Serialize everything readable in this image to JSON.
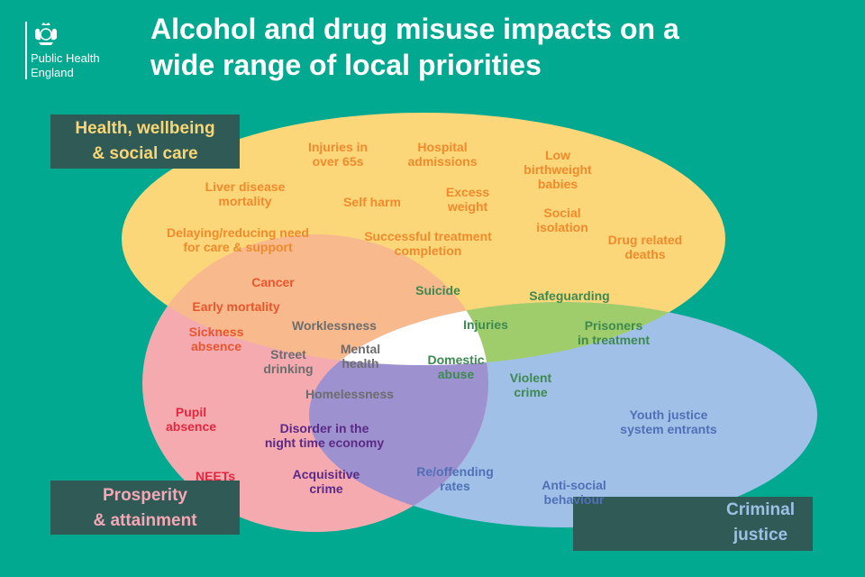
{
  "logo": {
    "name": "Public Health\nEngland",
    "icon": "royal-coat-of-arms-icon"
  },
  "title": {
    "line1": "Alcohol and drug misuse impacts on a",
    "line2": "wide range of local priorities"
  },
  "colors": {
    "background": "#00a98f",
    "health_fill": "#fbd77a",
    "criminal_fill": "#a0c0e7",
    "prosperity_fill": "#f5aab0",
    "health_criminal_overlap": "#9fcd6b",
    "health_prosperity_overlap": "#f8b98c",
    "criminal_prosperity_overlap": "#9d91cf",
    "centre_overlap": "#ffffff",
    "corner_labels": "#2f5a55"
  },
  "groups": {
    "health": {
      "line1": "Health, wellbeing",
      "line2": "& social care"
    },
    "prosperity": {
      "line1": "Prosperity",
      "line2": "& attainment"
    },
    "criminal": {
      "line1": "Criminal",
      "line2": "justice"
    }
  },
  "items": {
    "injuries_65": [
      "Injuries in",
      "over 65s"
    ],
    "hospital": [
      "Hospital",
      "admissions"
    ],
    "low_birthweight": [
      "Low",
      "birthweight",
      "babies"
    ],
    "liver": [
      "Liver disease",
      "mortality"
    ],
    "self_harm": [
      "Self harm"
    ],
    "excess_weight": [
      "Excess",
      "weight"
    ],
    "social_isolation": [
      "Social",
      "isolation"
    ],
    "delaying_care": [
      "Delaying/reducing need",
      "for care & support"
    ],
    "treatment_completion": [
      "Successful treatment",
      "completion"
    ],
    "drug_deaths": [
      "Drug related",
      "deaths"
    ],
    "cancer": [
      "Cancer"
    ],
    "early_mortality": [
      "Early mortality"
    ],
    "sickness": [
      "Sickness",
      "absence"
    ],
    "worklessness": [
      "Worklessness"
    ],
    "street_drinking": [
      "Street",
      "drinking"
    ],
    "mental_health": [
      "Mental",
      "health"
    ],
    "homelessness": [
      "Homelessness"
    ],
    "suicide": [
      "Suicide"
    ],
    "safeguarding": [
      "Safeguarding"
    ],
    "injuries": [
      "Injuries"
    ],
    "prisoners": [
      "Prisoners",
      "in treatment"
    ],
    "domestic_abuse": [
      "Domestic",
      "abuse"
    ],
    "violent_crime": [
      "Violent",
      "crime"
    ],
    "pupil_absence": [
      "Pupil",
      "absence"
    ],
    "neets": [
      "NEETs"
    ],
    "disorder": [
      "Disorder in the",
      "night time economy"
    ],
    "acquisitive": [
      "Acquisitive",
      "crime"
    ],
    "youth_justice": [
      "Youth justice",
      "system entrants"
    ],
    "reoffending": [
      "Re/offending",
      "rates"
    ],
    "anti_social": [
      "Anti-social",
      "behaviour"
    ]
  }
}
